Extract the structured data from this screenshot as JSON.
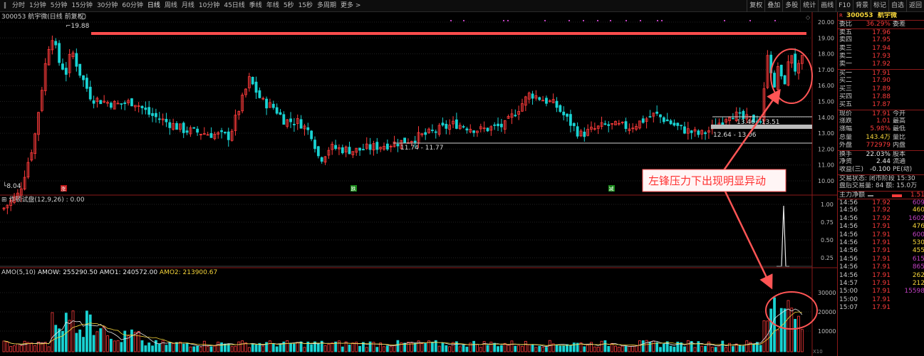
{
  "toolbar": {
    "periods": [
      "分时",
      "1分钟",
      "5分钟",
      "15分钟",
      "30分钟",
      "60分钟",
      "日线",
      "周线",
      "月线",
      "10分钟",
      "45日线",
      "季线",
      "年线",
      "5秒",
      "15秒",
      "多周期",
      "更多 >"
    ],
    "active": "日线",
    "right_tools": [
      "复权",
      "叠加",
      "多股",
      "统计",
      "画线",
      "F10",
      "背景",
      "标记",
      "自选",
      "返回"
    ]
  },
  "main_chart": {
    "title": "300053 航宇微(日线 前复权)",
    "high_label": "19.88",
    "low_label": "8.04",
    "y_ticks": [
      "20.00",
      "19.00",
      "18.00",
      "17.00",
      "16.00",
      "15.00",
      "14.00",
      "13.00",
      "12.00",
      "11.00",
      "10.00"
    ],
    "range_labels": [
      "11.74 - 11.77",
      "13.46 - 13.51",
      "12.64 - 13.06"
    ],
    "markers": [
      "涨",
      "跌",
      "减",
      "调"
    ]
  },
  "indicator1": {
    "title": "作顿试盘(12,9,26) : 0.00",
    "y_ticks": [
      "1.00",
      "0.75",
      "0.50",
      "0.25"
    ]
  },
  "indicator2": {
    "title": "AMO(5,10)",
    "amow": "AMOW: 255290.50",
    "amo1": "AMO1: 240572.00",
    "amo2": "AMO2: 213900.67",
    "y_ticks": [
      "30000",
      "20000",
      "10000"
    ],
    "unit": "X10"
  },
  "annotation": {
    "text": "左锋压力下出现明显异动"
  },
  "colors": {
    "up": "#ff3b3b",
    "down": "#19d2d2",
    "accent": "#ff4d4d",
    "panel_border": "#8b1a1a"
  },
  "quote": {
    "badge": "R",
    "code": "300053",
    "name": "航宇微",
    "ratio_label": "委比",
    "ratio": "36.29%",
    "diff_label": "委差",
    "sells": [
      {
        "label": "卖五",
        "price": "17.96"
      },
      {
        "label": "卖四",
        "price": "17.95"
      },
      {
        "label": "卖三",
        "price": "17.94"
      },
      {
        "label": "卖二",
        "price": "17.93"
      },
      {
        "label": "卖一",
        "price": "17.92"
      }
    ],
    "buys": [
      {
        "label": "买一",
        "price": "17.91"
      },
      {
        "label": "买二",
        "price": "17.90"
      },
      {
        "label": "买三",
        "price": "17.89"
      },
      {
        "label": "买四",
        "price": "17.88"
      },
      {
        "label": "买五",
        "price": "17.87"
      }
    ],
    "stats": [
      {
        "l": "现价",
        "v": "17.91",
        "c": "red",
        "r": "今开"
      },
      {
        "l": "涨跌",
        "v": "1.01",
        "c": "red",
        "r": "最高"
      },
      {
        "l": "涨幅",
        "v": "5.98%",
        "c": "red",
        "r": "最低"
      },
      {
        "l": "总量",
        "v": "143.4万",
        "c": "yellow",
        "r": "量比"
      },
      {
        "l": "外盘",
        "v": "772979",
        "c": "red",
        "r": "内盘"
      },
      {
        "l": "换手",
        "v": "22.03%",
        "c": "white",
        "r": "股本"
      },
      {
        "l": "净资",
        "v": "2.44",
        "c": "white",
        "r": "流通"
      },
      {
        "l": "收益(三)",
        "v": "-0.100",
        "c": "white",
        "r": "PE(动)"
      }
    ],
    "trade_status": "交易状态: 闭市阶段 15:30",
    "after_hours": "盘后交易量: 84  额: 15.0万",
    "main_flow_label": "主力净额",
    "main_flow_value": "1.51",
    "ticks": [
      {
        "t": "14:56",
        "p": "17.92",
        "q": "609"
      },
      {
        "t": "14:56",
        "p": "17.92",
        "q": "460"
      },
      {
        "t": "14:56",
        "p": "17.92",
        "q": "1602"
      },
      {
        "t": "14:56",
        "p": "17.91",
        "q": "476"
      },
      {
        "t": "14:56",
        "p": "17.91",
        "q": "600"
      },
      {
        "t": "14:56",
        "p": "17.91",
        "q": "530"
      },
      {
        "t": "14:56",
        "p": "17.91",
        "q": "455"
      },
      {
        "t": "14:56",
        "p": "17.91",
        "q": "615"
      },
      {
        "t": "14:56",
        "p": "17.91",
        "q": "865"
      },
      {
        "t": "14:56",
        "p": "17.91",
        "q": "262"
      },
      {
        "t": "14:57",
        "p": "17.91",
        "q": "212"
      },
      {
        "t": "15:00",
        "p": "17.91",
        "q": "15598"
      },
      {
        "t": "15:00",
        "p": "17.91",
        "q": ""
      },
      {
        "t": "15:07",
        "p": "17.91",
        "q": ""
      }
    ]
  }
}
